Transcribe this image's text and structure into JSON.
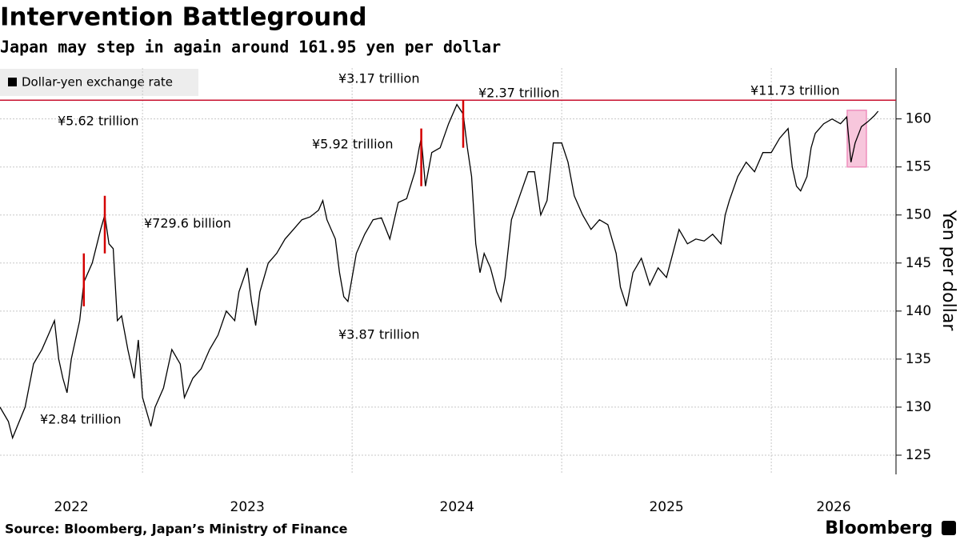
{
  "chart_data": {
    "type": "line",
    "title": "Intervention Battleground",
    "subtitle": "Japan may step in again around 161.95 yen per dollar",
    "y_label": "Yen per dollar",
    "source": "Source: Bloomberg, Japan’s Ministry of Finance",
    "brand": "Bloomberg",
    "x": [
      2022.32,
      2022.36,
      2022.38,
      2022.44,
      2022.48,
      2022.52,
      2022.55,
      2022.58,
      2022.6,
      2022.62,
      2022.64,
      2022.66,
      2022.7,
      2022.72,
      2022.76,
      2022.8,
      2022.82,
      2022.84,
      2022.86,
      2022.88,
      2022.9,
      2022.93,
      2022.96,
      2022.98,
      2023.0,
      2023.04,
      2023.06,
      2023.1,
      2023.14,
      2023.18,
      2023.2,
      2023.24,
      2023.28,
      2023.32,
      2023.36,
      2023.4,
      2023.44,
      2023.46,
      2023.5,
      2023.52,
      2023.54,
      2023.56,
      2023.6,
      2023.64,
      2023.68,
      2023.72,
      2023.76,
      2023.8,
      2023.84,
      2023.86,
      2023.88,
      2023.92,
      2023.94,
      2023.96,
      2023.98,
      2024.02,
      2024.06,
      2024.1,
      2024.14,
      2024.18,
      2024.22,
      2024.26,
      2024.3,
      2024.32,
      2024.33,
      2024.35,
      2024.38,
      2024.42,
      2024.46,
      2024.5,
      2024.53,
      2024.55,
      2024.57,
      2024.59,
      2024.61,
      2024.63,
      2024.66,
      2024.69,
      2024.71,
      2024.73,
      2024.76,
      2024.8,
      2024.84,
      2024.87,
      2024.9,
      2024.93,
      2024.96,
      2025.0,
      2025.03,
      2025.06,
      2025.1,
      2025.14,
      2025.18,
      2025.22,
      2025.26,
      2025.28,
      2025.31,
      2025.34,
      2025.38,
      2025.42,
      2025.46,
      2025.5,
      2025.53,
      2025.56,
      2025.6,
      2025.64,
      2025.68,
      2025.72,
      2025.76,
      2025.78,
      2025.8,
      2025.84,
      2025.88,
      2025.92,
      2025.96,
      2026.0,
      2026.04,
      2026.08,
      2026.1,
      2026.12,
      2026.14,
      2026.17,
      2026.19,
      2026.21,
      2026.25,
      2026.29,
      2026.33,
      2026.36,
      2026.38,
      2026.4,
      2026.43,
      2026.46,
      2026.49,
      2026.51
    ],
    "series": [
      {
        "name": "Dollar-yen exchange rate",
        "color": "#000000",
        "values": [
          130,
          128.5,
          126.8,
          130,
          134.5,
          136,
          137.5,
          139,
          135,
          133,
          131.5,
          135,
          139,
          143,
          145,
          148.5,
          150,
          147,
          146.5,
          139,
          139.5,
          136,
          133,
          137,
          131,
          128,
          130,
          132,
          136,
          134.5,
          131,
          133,
          134,
          136,
          137.5,
          140,
          139,
          142,
          144.5,
          141,
          138.5,
          142,
          145,
          146,
          147.5,
          148.5,
          149.5,
          149.8,
          150.5,
          151.5,
          149.5,
          147.5,
          144,
          141.5,
          141,
          146,
          148,
          149.5,
          149.7,
          147.5,
          151.3,
          151.7,
          154.5,
          157,
          158,
          153,
          156.5,
          157,
          159.5,
          161.5,
          160.5,
          157,
          154,
          147,
          144,
          146,
          144.5,
          142,
          141,
          143.5,
          149.5,
          152,
          154.5,
          154.5,
          150,
          151.5,
          157.5,
          157.5,
          155.5,
          152,
          150,
          148.5,
          149.5,
          149,
          146,
          142.5,
          140.5,
          144,
          145.5,
          142.7,
          144.5,
          143.5,
          146,
          148.5,
          147,
          147.5,
          147.3,
          148,
          147,
          150,
          151.5,
          154,
          155.5,
          154.5,
          156.5,
          156.5,
          158,
          159,
          155,
          153,
          152.5,
          154,
          157,
          158.5,
          159.5,
          160,
          159.5,
          160.2,
          155.5,
          157.5,
          159.2,
          159.7,
          160.3,
          160.8
        ]
      }
    ],
    "xlim": [
      2022.32,
      2026.595
    ],
    "ylim": [
      123,
      165.3
    ],
    "yticks": [
      125,
      130,
      135,
      140,
      145,
      150,
      155,
      160
    ],
    "xticks": [
      {
        "value": 2022,
        "label": "2022"
      },
      {
        "value": 2023,
        "label": "2023"
      },
      {
        "value": 2024,
        "label": "2024"
      },
      {
        "value": 2025,
        "label": "2025"
      },
      {
        "value": 2026,
        "label": "2026"
      }
    ],
    "xgrid": [
      2023,
      2024,
      2025,
      2026
    ],
    "hline": {
      "value": 161.95,
      "color": "#c8102e"
    },
    "interventions": [
      {
        "x": 2022.72,
        "low": 140.5,
        "high": 146
      },
      {
        "x": 2022.82,
        "low": 146,
        "high": 152
      },
      {
        "x": 2024.33,
        "low": 153,
        "high": 159
      },
      {
        "x": 2024.53,
        "low": 157,
        "high": 162
      }
    ],
    "annotations": [
      "¥3.17 trillion",
      "¥2.37 trillion",
      "¥11.73 trillion",
      "¥5.62 trillion",
      "¥5.92 trillion",
      "¥729.6 billion",
      "¥3.87 trillion",
      "¥2.84 trillion"
    ]
  }
}
